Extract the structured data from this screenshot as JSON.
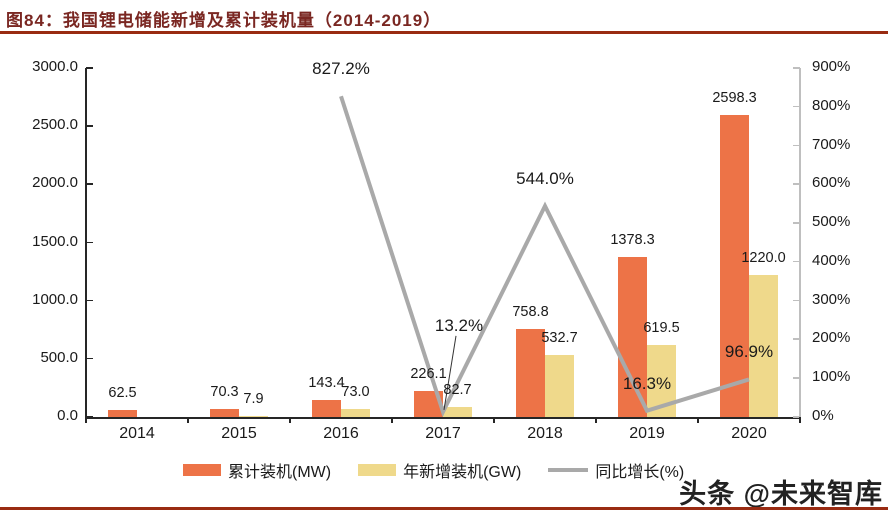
{
  "title": {
    "text": "图84：我国锂电储能新增及累计装机量（2014-2019）"
  },
  "watermark": "头条 @未来智库",
  "colors": {
    "bar_cumulative": "#ED7347",
    "bar_new": "#EFD98B",
    "growth_line": "#A9A9A9",
    "rule": "#992B12",
    "title_text": "#7A2722",
    "axis_left": "#262626",
    "axis_right": "#BFBFBF",
    "label_text": "#1A1A1A"
  },
  "chart_data": {
    "type": "bar",
    "subtype": "grouped bars + line on secondary axis",
    "categories": [
      "2014",
      "2015",
      "2016",
      "2017",
      "2018",
      "2019",
      "2020"
    ],
    "series": [
      {
        "name": "累计装机(MW)",
        "type": "bar",
        "axis": "left",
        "color": "#ED7347",
        "values": [
          62.5,
          70.3,
          143.4,
          226.1,
          758.8,
          1378.3,
          2598.3
        ],
        "labels": [
          "62.5",
          "70.3",
          "143.4",
          "226.1",
          "758.8",
          "1378.3",
          "2598.3"
        ]
      },
      {
        "name": "年新增装机(GW)",
        "type": "bar",
        "axis": "left",
        "color": "#EFD98B",
        "values": [
          null,
          7.9,
          73.0,
          82.7,
          532.7,
          619.5,
          1220.0
        ],
        "labels": [
          null,
          "7.9",
          "73.0",
          "82.7",
          "532.7",
          "619.5",
          "1220.0"
        ]
      },
      {
        "name": "同比增长(%)",
        "type": "line",
        "axis": "right",
        "color": "#A9A9A9",
        "values": [
          null,
          null,
          827.2,
          13.2,
          544.0,
          16.3,
          96.9
        ],
        "labels": [
          null,
          null,
          "827.2%",
          "13.2%",
          "544.0%",
          "16.3%",
          "96.9%"
        ]
      }
    ],
    "left_axis": {
      "min": 0,
      "max": 3000,
      "step": 500,
      "tick_labels": [
        "0.0",
        "500.0",
        "1000.0",
        "1500.0",
        "2000.0",
        "2500.0",
        "3000.0"
      ]
    },
    "right_axis": {
      "min": 0,
      "max": 900,
      "step": 100,
      "tick_labels": [
        "0%",
        "100%",
        "200%",
        "300%",
        "400%",
        "500%",
        "600%",
        "700%",
        "800%",
        "900%"
      ]
    },
    "grid": false,
    "legend_position": "bottom"
  }
}
